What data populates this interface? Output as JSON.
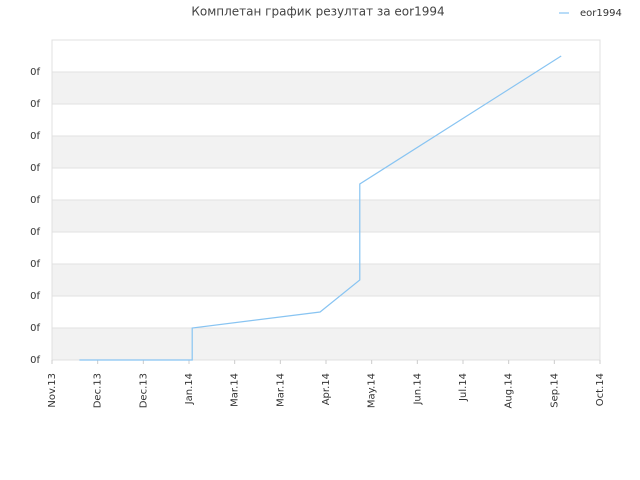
{
  "chart_data": {
    "type": "line",
    "title": "Комплетан график резултат за eor1994",
    "x": [
      0.6,
      3.07,
      3.07,
      5.87,
      6.74,
      6.74,
      11.15
    ],
    "series": [
      {
        "name": "eor1994",
        "color": "#88c4f2",
        "values": [
          0,
          0,
          1,
          1.5,
          2.5,
          5.5,
          9.5
        ]
      }
    ],
    "xlim": [
      0,
      12
    ],
    "xticks": [
      {
        "value": 0,
        "label": "Nov.13"
      },
      {
        "value": 1,
        "label": "Dec.13"
      },
      {
        "value": 2,
        "label": "Dec.13"
      },
      {
        "value": 3,
        "label": "Jan.14"
      },
      {
        "value": 4,
        "label": "Mar.14"
      },
      {
        "value": 5,
        "label": "Mar.14"
      },
      {
        "value": 6,
        "label": "Apr.14"
      },
      {
        "value": 7,
        "label": "May.14"
      },
      {
        "value": 8,
        "label": "Jun.14"
      },
      {
        "value": 9,
        "label": "Jul.14"
      },
      {
        "value": 10,
        "label": "Aug.14"
      },
      {
        "value": 11,
        "label": "Sep.14"
      },
      {
        "value": 12,
        "label": "Oct.14"
      }
    ],
    "ylim": [
      0,
      10
    ],
    "yticks": [
      {
        "value": 0,
        "label": "0f"
      },
      {
        "value": 1,
        "label": "0f"
      },
      {
        "value": 2,
        "label": "0f"
      },
      {
        "value": 3,
        "label": "0f"
      },
      {
        "value": 4,
        "label": "0f"
      },
      {
        "value": 5,
        "label": "0f"
      },
      {
        "value": 6,
        "label": "0f"
      },
      {
        "value": 7,
        "label": "0f"
      },
      {
        "value": 8,
        "label": "0f"
      },
      {
        "value": 9,
        "label": "0f"
      }
    ],
    "grid": true,
    "legend": "top-right"
  }
}
